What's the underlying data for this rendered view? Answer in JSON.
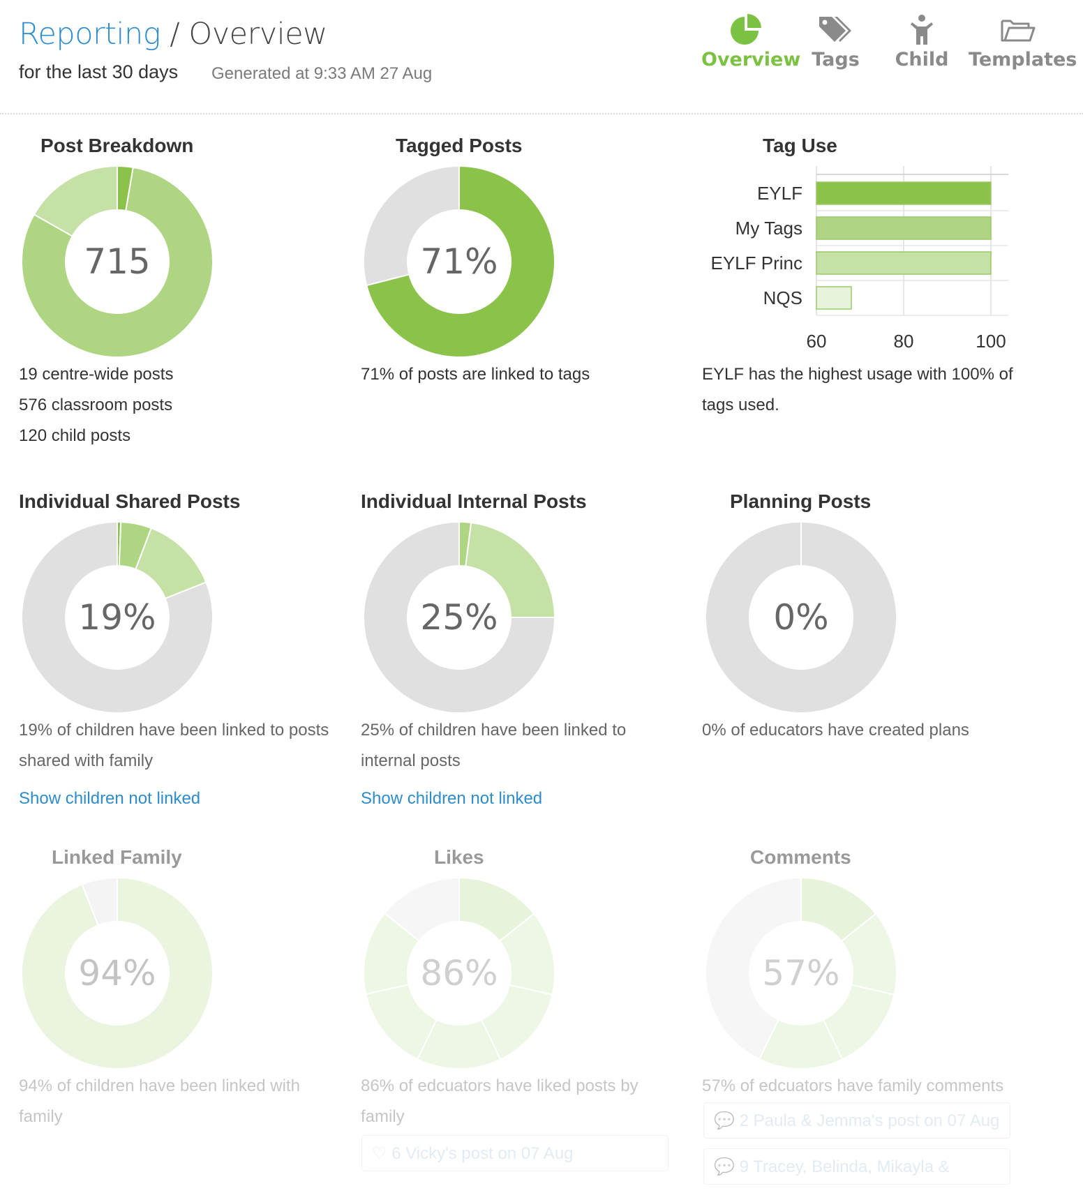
{
  "header": {
    "breadcrumb_root": "Reporting",
    "separator": " / ",
    "page": "Overview",
    "period": "for the last 30 days",
    "generated": "Generated at 9:33 AM 27 Aug"
  },
  "nav": [
    {
      "label": "Overview",
      "icon": "pie-chart-icon",
      "active": true
    },
    {
      "label": "Tags",
      "icon": "tags-icon",
      "active": false
    },
    {
      "label": "Child",
      "icon": "child-icon",
      "active": false
    },
    {
      "label": "Templates",
      "icon": "folder-icon",
      "active": false
    }
  ],
  "colors": {
    "accent": "#7cc242",
    "link": "#2d8ccc",
    "green_dark": "#8bc34a",
    "green_mid": "#aed581",
    "green_light": "#c5e1a5",
    "grey": "#e0e0e0"
  },
  "panels": {
    "post_breakdown": {
      "title": "Post Breakdown",
      "center": "715",
      "lines": [
        "19 centre-wide posts",
        "576 classroom posts",
        "120 child posts"
      ]
    },
    "tagged_posts": {
      "title": "Tagged Posts",
      "center": "71%",
      "lines": [
        "71% of posts are linked to tags"
      ]
    },
    "tag_use": {
      "title": "Tag Use",
      "lines": [
        "EYLF has the highest usage with 100% of",
        "tags used."
      ]
    },
    "individual_shared": {
      "title": "Individual Shared Posts",
      "center": "19%",
      "lines": [
        "19% of children have been linked to posts",
        "shared with family"
      ],
      "link": "Show children not linked"
    },
    "individual_internal": {
      "title": "Individual Internal Posts",
      "center": "25%",
      "lines": [
        "25% of children have been linked to",
        "internal posts"
      ],
      "link": "Show children not linked"
    },
    "planning": {
      "title": "Planning Posts",
      "center": "0%",
      "lines": [
        "0% of educators have created plans"
      ]
    },
    "linked_family": {
      "title": "Linked Family",
      "center": "94%",
      "lines": [
        "94% of children have been linked with",
        "family"
      ]
    },
    "likes": {
      "title": "Likes",
      "center": "86%",
      "lines": [
        "86% of edcuators have liked posts by",
        "family"
      ],
      "entries": [
        {
          "icon": "heart-icon",
          "count": "6",
          "text": "Vicky's post on 07 Aug"
        }
      ]
    },
    "comments": {
      "title": "Comments",
      "center": "57%",
      "lines": [
        "57% of edcuators have family comments"
      ],
      "entries": [
        {
          "icon": "speech-bubble-icon",
          "count": "2",
          "text": "Paula & Jemma's post on 07 Aug"
        },
        {
          "icon": "speech-bubble-icon",
          "count": "9",
          "text": "Tracey, Belinda, Mikayla &"
        }
      ]
    }
  },
  "donuts": {
    "post_breakdown": [
      {
        "value": 19,
        "color": "#8bc34a"
      },
      {
        "value": 576,
        "color": "#aed581"
      },
      {
        "value": 120,
        "color": "#c5e1a5"
      }
    ],
    "tagged_posts": [
      {
        "value": 71,
        "color": "#8bc34a"
      },
      {
        "value": 29,
        "color": "#e0e0e0"
      }
    ],
    "individual_shared": [
      {
        "value": 0.6,
        "color": "#8bc34a"
      },
      {
        "value": 5.2,
        "color": "#aed581"
      },
      {
        "value": 13.2,
        "color": "#c5e1a5"
      },
      {
        "value": 81,
        "color": "#e0e0e0"
      }
    ],
    "individual_internal": [
      {
        "value": 2,
        "color": "#aed581"
      },
      {
        "value": 23,
        "color": "#c5e1a5"
      },
      {
        "value": 75,
        "color": "#e0e0e0"
      }
    ],
    "planning": [
      {
        "value": 100,
        "color": "#e0e0e0"
      }
    ],
    "linked_family": [
      {
        "value": 94,
        "color": "#c5e1a5"
      },
      {
        "value": 6,
        "color": "#e0e0e0"
      }
    ],
    "likes": [
      {
        "value": 14.3,
        "color": "#aed581"
      },
      {
        "value": 14.3,
        "color": "#c5e1a5"
      },
      {
        "value": 14.3,
        "color": "#c5e1a5"
      },
      {
        "value": 14.3,
        "color": "#c5e1a5"
      },
      {
        "value": 14.3,
        "color": "#c5e1a5"
      },
      {
        "value": 14.3,
        "color": "#c5e1a5"
      },
      {
        "value": 14.2,
        "color": "#e0e0e0"
      }
    ],
    "comments": [
      {
        "value": 14.3,
        "color": "#aed581"
      },
      {
        "value": 14.3,
        "color": "#c5e1a5"
      },
      {
        "value": 14.3,
        "color": "#c5e1a5"
      },
      {
        "value": 14.3,
        "color": "#c5e1a5"
      },
      {
        "value": 42.8,
        "color": "#e0e0e0"
      }
    ]
  },
  "chart_data": {
    "type": "bar",
    "orientation": "horizontal",
    "title": "Tag Use",
    "categories": [
      "EYLF",
      "My Tags",
      "EYLF Princ",
      "NQS"
    ],
    "values": [
      100,
      100,
      100,
      68
    ],
    "colors": [
      "#8bc34a",
      "#aed581",
      "#c5e1a5",
      "#e8f3dc"
    ],
    "xlim": [
      60,
      100
    ],
    "xticks": [
      "60",
      "80",
      "100"
    ],
    "grid": true
  }
}
